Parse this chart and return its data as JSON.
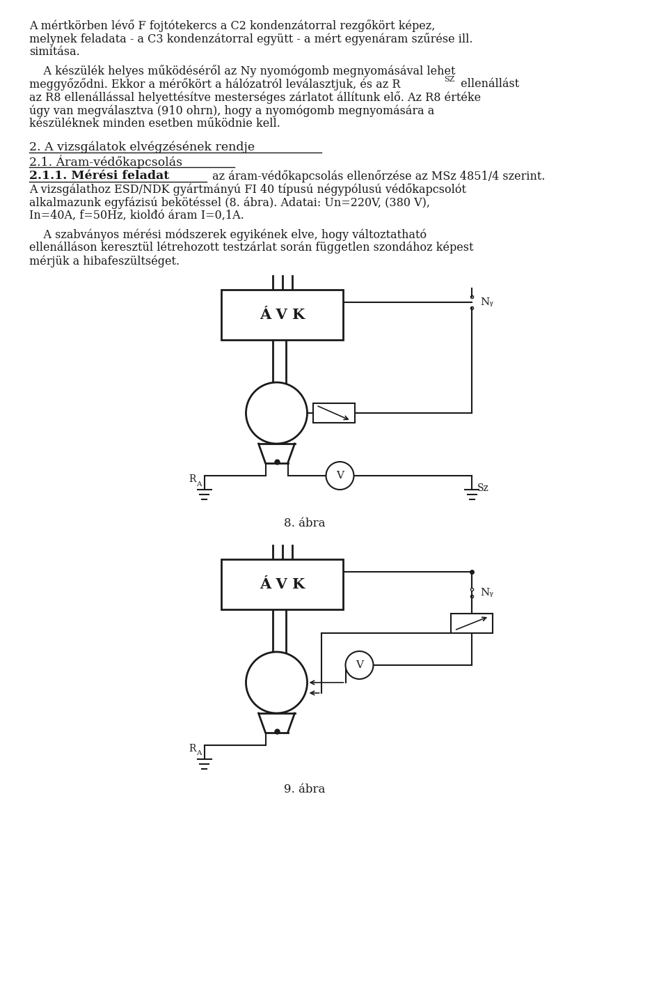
{
  "page_width": 9.6,
  "page_height": 14.2,
  "bg_color": "#ffffff",
  "text_color": "#1a1a1a",
  "font_size_body": 11.5,
  "font_size_section": 12.5,
  "AVK_label": "Á V K",
  "fig8_label": "8. ábra",
  "fig9_label": "9. ábra",
  "line1a": "A mértkörben lévő F fojtótekercs a C2 kondenzátorral rezgőkört képez,",
  "line1b": "melynek feladata - a C3 kondenzátorral együtt - a mért egyenáram szűrése ill.",
  "line1c": "simítása.",
  "line2a": "    A készülék helyes működéséről az Ny nyomógomb megnyomásával lehet",
  "line2b_pre": "meggyőződni. Ekkor a mérőkört a hálózatról leválasztjuk, és az R",
  "line2b_sub": "SZ",
  "line2b_post": " ellenállást",
  "line2c": "az R8 ellenállással helyettésítve mesterséges zárlatot állítunk elő. Az R8 értéke",
  "line2d": "úgy van megválasztva (910 ohrn), hogy a nyomógomb megnyomására a",
  "line2e": "készüléknek minden esetben működnie kell.",
  "section2": "2. A vizsgálatok elvégzésének rendje",
  "section21": "2.1. Áram-védőkapcsolás",
  "section211_bold": "2.1.1. Mérési feladat",
  "section211_rest": " az áram-védőkapcsolás ellenőrzése az MSz 4851/4 szerint.",
  "line3a": "A vizsgálathoz ESD/NDK gyártmányú FI 40 típusú négypólusú védőkapcsolót",
  "line3b": "alkalmazunk egyfázisú bekötéssel (8. ábra). Adatai: Un=220V, (380 V),",
  "line3c": "In=40A, f=50Hz, kiolđó áram I=0,1A.",
  "line4a": "    A szabványos mérési módszerek egyikének elve, hogy változtatható",
  "line4b": "ellenálláson keresztül létrehozott testzárlat során független szondához képest",
  "line4c": "mérjük a hibafeszültséget."
}
